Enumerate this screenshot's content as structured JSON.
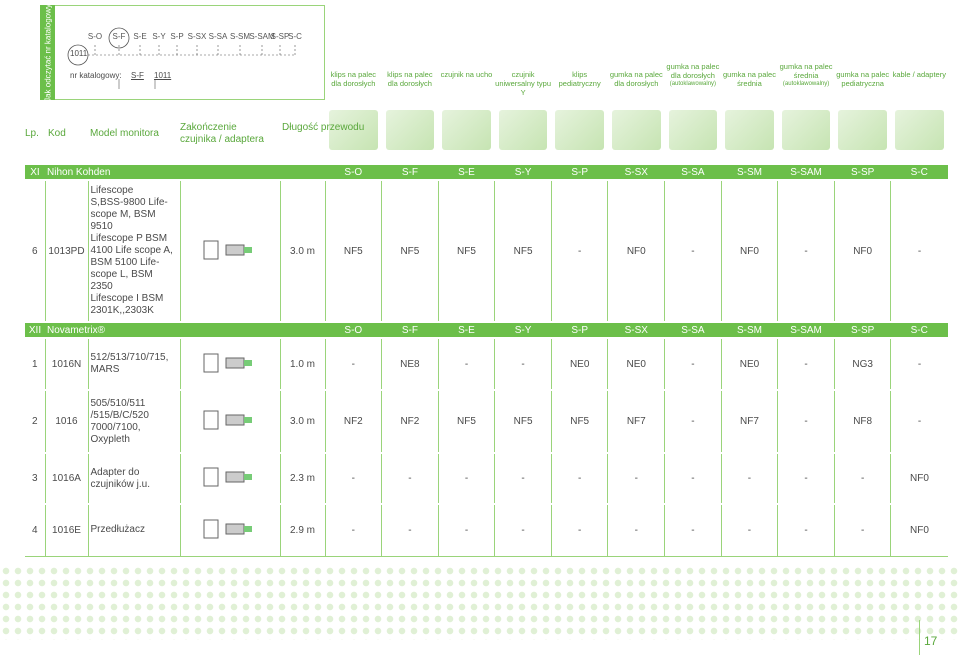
{
  "legend": {
    "side_label": "Jak odczytać nr katalogowy",
    "example_code": "1011",
    "catalog_label": "nr katalogowy:"
  },
  "codes": [
    "S-O",
    "S-F",
    "S-E",
    "S-Y",
    "S-P",
    "S-SX",
    "S-SA",
    "S-SM",
    "S-SAM",
    "S-SP",
    "S-C"
  ],
  "sensor_types": [
    "klips na palec dla dorosłych",
    "klips na palec dla dorosłych",
    "czujnik na ucho",
    "czujnik uniwersalny typu Y",
    "klips pediatryczny",
    "gumka na palec dla dorosłych",
    "gumka na palec dla dorosłych",
    "gumka na palec średnia",
    "gumka na palec średnia",
    "gumka na palec pediatryczna",
    "kable / adaptery"
  ],
  "sensor_notes": [
    null,
    null,
    null,
    null,
    null,
    null,
    "(autoklawowalny)",
    null,
    "(autoklawowalny)",
    null,
    null
  ],
  "table": {
    "headers": [
      "Lp.",
      "Kod",
      "Model monitora",
      "Zakończenie czujnika / adaptera",
      "Długość przewodu"
    ],
    "sections": [
      {
        "number": "XI",
        "name": "Nihon Kohden",
        "rows": [
          {
            "lp": "6",
            "code": "1013PD",
            "model": "Lifescope\nS,BSS-9800 Life-\nscope M, BSM 9510\nLifescope P BSM\n4100 Life scope A,\nBSM 5100 Life-\nscope L, BSM 2350\nLifescope I BSM\n2301K,,2303K",
            "length": "3.0 m",
            "values": [
              "NF5",
              "NF5",
              "NF5",
              "NF5",
              "-",
              "NF0",
              "-",
              "NF0",
              "-",
              "NF0",
              "-"
            ]
          }
        ]
      },
      {
        "number": "XII",
        "name": "Novametrix®",
        "rows": [
          {
            "lp": "1",
            "code": "1016N",
            "model": "512/513/710/715,\nMARS",
            "length": "1.0 m",
            "values": [
              "-",
              "NE8",
              "-",
              "-",
              "NE0",
              "NE0",
              "-",
              "NE0",
              "-",
              "NG3",
              "-"
            ]
          },
          {
            "lp": "2",
            "code": "1016",
            "model": "505/510/511\n/515/B/C/520\n7000/7100,\nOxypleth",
            "length": "3.0 m",
            "values": [
              "NF2",
              "NF2",
              "NF5",
              "NF5",
              "NF5",
              "NF7",
              "-",
              "NF7",
              "-",
              "NF8",
              "-"
            ]
          },
          {
            "lp": "3",
            "code": "1016A",
            "model": "Adapter do\nczujników j.u.",
            "length": "2.3 m",
            "values": [
              "-",
              "-",
              "-",
              "-",
              "-",
              "-",
              "-",
              "-",
              "-",
              "-",
              "NF0"
            ]
          },
          {
            "lp": "4",
            "code": "1016E",
            "model": "Przedłużacz",
            "length": "2.9 m",
            "values": [
              "-",
              "-",
              "-",
              "-",
              "-",
              "-",
              "-",
              "-",
              "-",
              "-",
              "NF0"
            ]
          }
        ]
      }
    ]
  },
  "page_number": "17"
}
